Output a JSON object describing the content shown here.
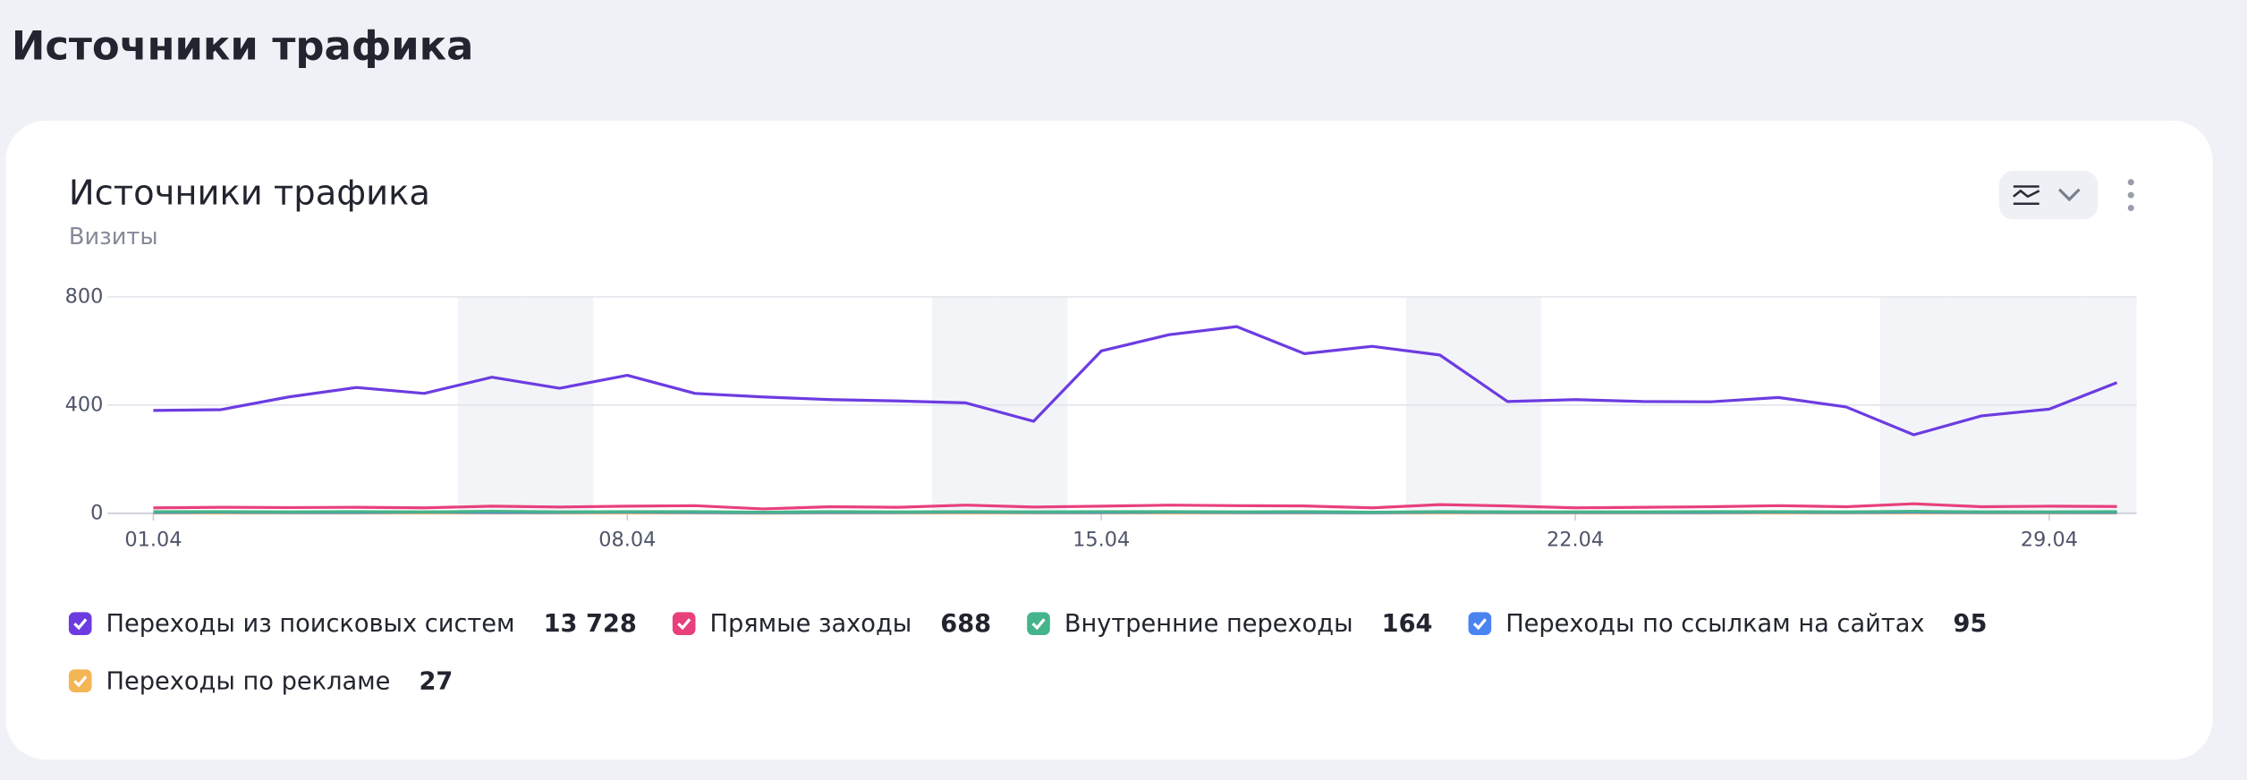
{
  "header": {
    "title": "Источники трафика"
  },
  "chart_data": {
    "type": "line",
    "title": "Источники трафика",
    "subtitle": "Визиты",
    "categories": [
      "01.04",
      null,
      null,
      null,
      null,
      null,
      null,
      "08.04",
      null,
      null,
      null,
      null,
      null,
      null,
      "15.04",
      null,
      null,
      null,
      null,
      null,
      null,
      "22.04",
      null,
      null,
      null,
      null,
      null,
      null,
      "29.04",
      null
    ],
    "weekend_indices": [
      5,
      6,
      12,
      13,
      19,
      20,
      26,
      27,
      28,
      29
    ],
    "ylim": [
      0,
      800
    ],
    "yticks": [
      0,
      400,
      800
    ],
    "grid": true,
    "series": [
      {
        "name": "Переходы из поисковых систем",
        "color": "#6c3ce1",
        "total": 13728,
        "total_label": "13 728",
        "values": [
          380,
          383,
          430,
          465,
          443,
          503,
          462,
          510,
          443,
          430,
          420,
          415,
          408,
          340,
          600,
          660,
          690,
          590,
          617,
          585,
          413,
          420,
          413,
          412,
          428,
          393,
          290,
          360,
          385,
          483
        ]
      },
      {
        "name": "Прямые заходы",
        "color": "#e8407c",
        "total": 688,
        "values": [
          20,
          22,
          21,
          22,
          20,
          26,
          23,
          26,
          28,
          16,
          24,
          22,
          30,
          23,
          26,
          30,
          28,
          27,
          20,
          32,
          27,
          20,
          22,
          24,
          28,
          24,
          35,
          24,
          26,
          25
        ]
      },
      {
        "name": "Внутренние переходы",
        "color": "#45b48a",
        "total": 164,
        "values": [
          6,
          6,
          5,
          6,
          5,
          7,
          5,
          6,
          6,
          4,
          6,
          5,
          6,
          5,
          6,
          6,
          5,
          6,
          4,
          6,
          5,
          5,
          5,
          6,
          6,
          5,
          7,
          5,
          5,
          6
        ]
      },
      {
        "name": "Переходы по ссылкам на сайтах",
        "color": "#4a84f0",
        "total": 95,
        "values": [
          3,
          4,
          3,
          3,
          4,
          3,
          3,
          4,
          3,
          2,
          3,
          3,
          4,
          3,
          3,
          4,
          3,
          3,
          2,
          4,
          3,
          3,
          3,
          3,
          4,
          3,
          4,
          3,
          3,
          3
        ]
      },
      {
        "name": "Переходы по рекламе",
        "color": "#f4b555",
        "total": 27,
        "values": [
          1,
          1,
          1,
          1,
          1,
          1,
          1,
          1,
          1,
          0,
          1,
          1,
          1,
          1,
          1,
          1,
          1,
          1,
          1,
          1,
          1,
          1,
          1,
          1,
          1,
          1,
          1,
          1,
          1,
          1
        ]
      }
    ]
  }
}
